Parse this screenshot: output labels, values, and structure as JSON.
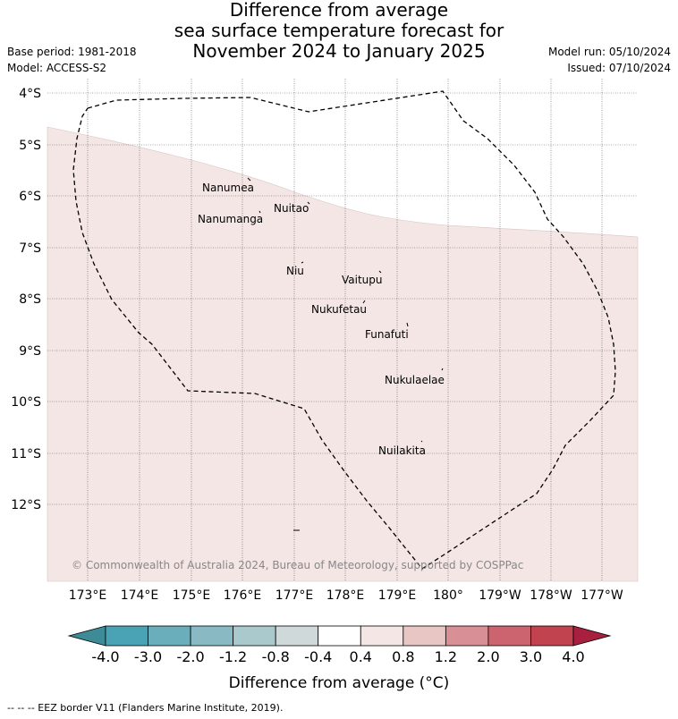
{
  "title_lines": [
    "Difference from average",
    "sea surface temperature forecast for",
    "November 2024 to January 2025"
  ],
  "base_period": "Base period: 1981-2018",
  "model": "Model: ACCESS-S2",
  "model_run": "Model run: 05/10/2024",
  "issued": "Issued: 07/10/2024",
  "lat_ticks": [
    "4°S",
    "5°S",
    "6°S",
    "7°S",
    "8°S",
    "9°S",
    "10°S",
    "11°S",
    "12°S"
  ],
  "lon_ticks": [
    "173°E",
    "174°E",
    "175°E",
    "176°E",
    "177°E",
    "178°E",
    "179°E",
    "180°",
    "179°W",
    "178°W",
    "177°W"
  ],
  "places": [
    {
      "name": "Nanumea"
    },
    {
      "name": "Nuitao"
    },
    {
      "name": "Nanumanga"
    },
    {
      "name": "Niu"
    },
    {
      "name": "Vaitupu"
    },
    {
      "name": "Nukufetau"
    },
    {
      "name": "Funafuti"
    },
    {
      "name": "Nukulaelae"
    },
    {
      "name": "Nuilakita"
    }
  ],
  "copyright": "© Commonwealth of Australia 2024, Bureau of Meteorology, supported by COSPPac",
  "colorbar": {
    "label": "Difference from average (°C)",
    "ticks": [
      "-4.0",
      "-3.0",
      "-2.0",
      "-1.2",
      "-0.8",
      "-0.4",
      "0.4",
      "0.8",
      "1.2",
      "2.0",
      "3.0",
      "4.0"
    ],
    "colors": {
      "under": "#3d8b96",
      "bins": [
        "#4aa3b5",
        "#6aaebb",
        "#89bac4",
        "#a9c9cc",
        "#d0d9da",
        "#ffffff",
        "#f4e6e5",
        "#e8c6c3",
        "#d88f95",
        "#cc6470",
        "#c0434f"
      ],
      "over": "#a8203e"
    }
  },
  "anomaly_fill_color": "#f4e6e5",
  "legend_line": "--  --  -- EEZ border V11 (Flanders Marine Institute, 2019)."
}
